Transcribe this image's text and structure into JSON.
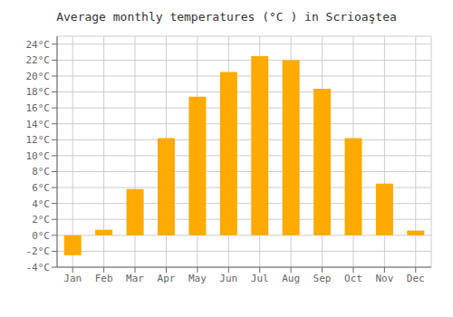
{
  "chart_data": {
    "type": "bar",
    "title": "Average monthly temperatures (°C ) in Scrioаştea",
    "categories": [
      "Jan",
      "Feb",
      "Mar",
      "Apr",
      "May",
      "Jun",
      "Jul",
      "Aug",
      "Sep",
      "Oct",
      "Nov",
      "Dec"
    ],
    "values": [
      -2.5,
      0.7,
      5.8,
      12.2,
      17.4,
      20.5,
      22.5,
      22.0,
      18.4,
      12.2,
      6.5,
      0.6
    ],
    "color": "#FFAA00",
    "ylim": [
      -4,
      25
    ],
    "yticks": [
      {
        "value": -4,
        "label": "-4°C"
      },
      {
        "value": -2,
        "label": "-2°C"
      },
      {
        "value": 0,
        "label": "0°C"
      },
      {
        "value": 2,
        "label": "2°C"
      },
      {
        "value": 4,
        "label": "4°C"
      },
      {
        "value": 6,
        "label": "6°C"
      },
      {
        "value": 8,
        "label": "8°C"
      },
      {
        "value": 10,
        "label": "10°C"
      },
      {
        "value": 12,
        "label": "12°C"
      },
      {
        "value": 14,
        "label": "14°C"
      },
      {
        "value": 16,
        "label": "16°C"
      },
      {
        "value": 18,
        "label": "18°C"
      },
      {
        "value": 20,
        "label": "20°C"
      },
      {
        "value": 22,
        "label": "22°C"
      },
      {
        "value": 24,
        "label": "24°C"
      }
    ],
    "grid": true
  }
}
